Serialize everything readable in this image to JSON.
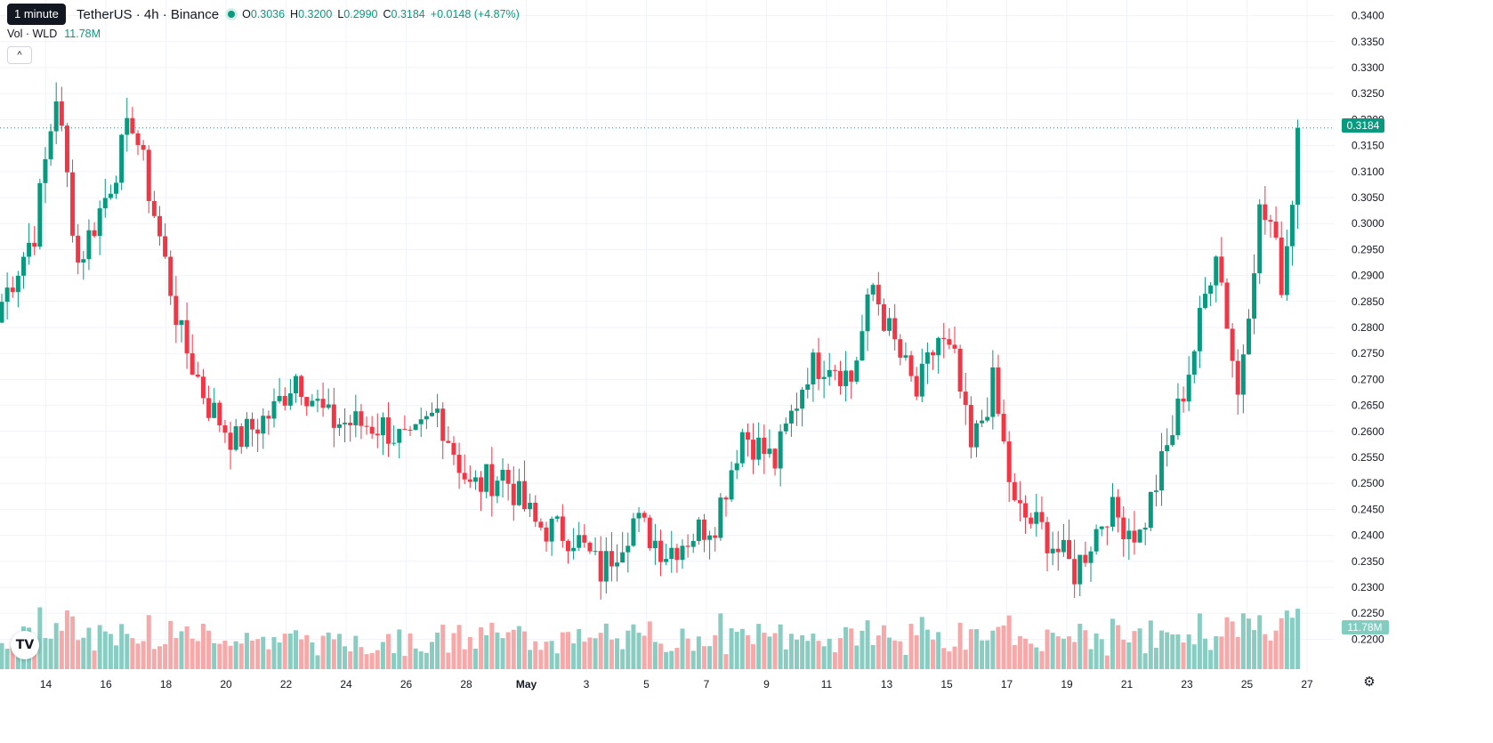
{
  "header": {
    "tooltip": "1 minute",
    "symbol": "TetherUS · 4h · Binance",
    "ohlc": {
      "o_label": "O",
      "o": "0.3036",
      "h_label": "H",
      "h": "0.3200",
      "l_label": "L",
      "l": "0.2990",
      "c_label": "C",
      "c": "0.3184",
      "change": "+0.0148 (+4.87%)"
    },
    "vol_label": "Vol · WLD",
    "vol_value": "11.78M",
    "collapse_glyph": "^",
    "logo_text": "TV"
  },
  "colors": {
    "up": "#089981",
    "down": "#f23645",
    "vol_up": "#89ccc2",
    "vol_down": "#f7a9a9",
    "grid": "#f0f3fa",
    "axis_text": "#131722"
  },
  "icons": {
    "logo": "tradingview-logo",
    "settings": "gear-icon"
  },
  "chart_data": {
    "type": "candlestick",
    "interval": "4h",
    "y_axis": {
      "min": 0.2175,
      "max": 0.3413,
      "ticks": [
        "0.3400",
        "0.3350",
        "0.3300",
        "0.3250",
        "0.3200",
        "0.3150",
        "0.3100",
        "0.3050",
        "0.3000",
        "0.2950",
        "0.2900",
        "0.2850",
        "0.2800",
        "0.2750",
        "0.2700",
        "0.2650",
        "0.2600",
        "0.2550",
        "0.2500",
        "0.2450",
        "0.2400",
        "0.2350",
        "0.2300",
        "0.2250",
        "0.2200"
      ]
    },
    "x_axis": {
      "ticks": [
        "14",
        "16",
        "18",
        "20",
        "22",
        "24",
        "26",
        "28",
        "May",
        "3",
        "5",
        "7",
        "9",
        "11",
        "13",
        "15",
        "17",
        "19",
        "21",
        "23",
        "25",
        "27"
      ]
    },
    "last_price": "0.3184",
    "last_volume": "11.78M",
    "grid": true,
    "anchors": [
      {
        "candle": 0,
        "close": 0.285
      },
      {
        "candle": 6,
        "close": 0.2985
      },
      {
        "candle": 10,
        "close": 0.325
      },
      {
        "candle": 14,
        "close": 0.2925
      },
      {
        "candle": 19,
        "close": 0.305
      },
      {
        "candle": 24,
        "close": 0.32
      },
      {
        "candle": 28,
        "close": 0.302
      },
      {
        "candle": 33,
        "close": 0.278
      },
      {
        "candle": 38,
        "close": 0.265
      },
      {
        "candle": 43,
        "close": 0.258
      },
      {
        "candle": 50,
        "close": 0.264
      },
      {
        "candle": 54,
        "close": 0.271
      },
      {
        "candle": 60,
        "close": 0.262
      },
      {
        "candle": 70,
        "close": 0.261
      },
      {
        "candle": 75,
        "close": 0.257
      },
      {
        "candle": 80,
        "close": 0.264
      },
      {
        "candle": 86,
        "close": 0.249
      },
      {
        "candle": 92,
        "close": 0.252
      },
      {
        "candle": 98,
        "close": 0.242
      },
      {
        "candle": 105,
        "close": 0.24
      },
      {
        "candle": 110,
        "close": 0.233
      },
      {
        "candle": 116,
        "close": 0.243
      },
      {
        "candle": 122,
        "close": 0.237
      },
      {
        "candle": 131,
        "close": 0.243
      },
      {
        "candle": 136,
        "close": 0.26
      },
      {
        "candle": 142,
        "close": 0.254
      },
      {
        "candle": 148,
        "close": 0.272
      },
      {
        "candle": 152,
        "close": 0.274
      },
      {
        "candle": 156,
        "close": 0.27
      },
      {
        "candle": 160,
        "close": 0.288
      },
      {
        "candle": 163,
        "close": 0.279
      },
      {
        "candle": 168,
        "close": 0.267
      },
      {
        "candle": 172,
        "close": 0.278
      },
      {
        "candle": 175,
        "close": 0.273
      },
      {
        "candle": 178,
        "close": 0.256
      },
      {
        "candle": 182,
        "close": 0.269
      },
      {
        "candle": 186,
        "close": 0.245
      },
      {
        "candle": 191,
        "close": 0.241
      },
      {
        "candle": 197,
        "close": 0.233
      },
      {
        "candle": 203,
        "close": 0.245
      },
      {
        "candle": 209,
        "close": 0.24
      },
      {
        "candle": 215,
        "close": 0.26
      },
      {
        "candle": 219,
        "close": 0.276
      },
      {
        "candle": 223,
        "close": 0.296
      },
      {
        "candle": 227,
        "close": 0.267
      },
      {
        "candle": 229,
        "close": 0.285
      },
      {
        "candle": 231,
        "close": 0.302
      },
      {
        "candle": 233,
        "close": 0.3
      },
      {
        "candle": 235,
        "close": 0.289
      },
      {
        "candle": 237,
        "close": 0.3036
      },
      {
        "candle": 238,
        "close": 0.3184
      }
    ]
  }
}
